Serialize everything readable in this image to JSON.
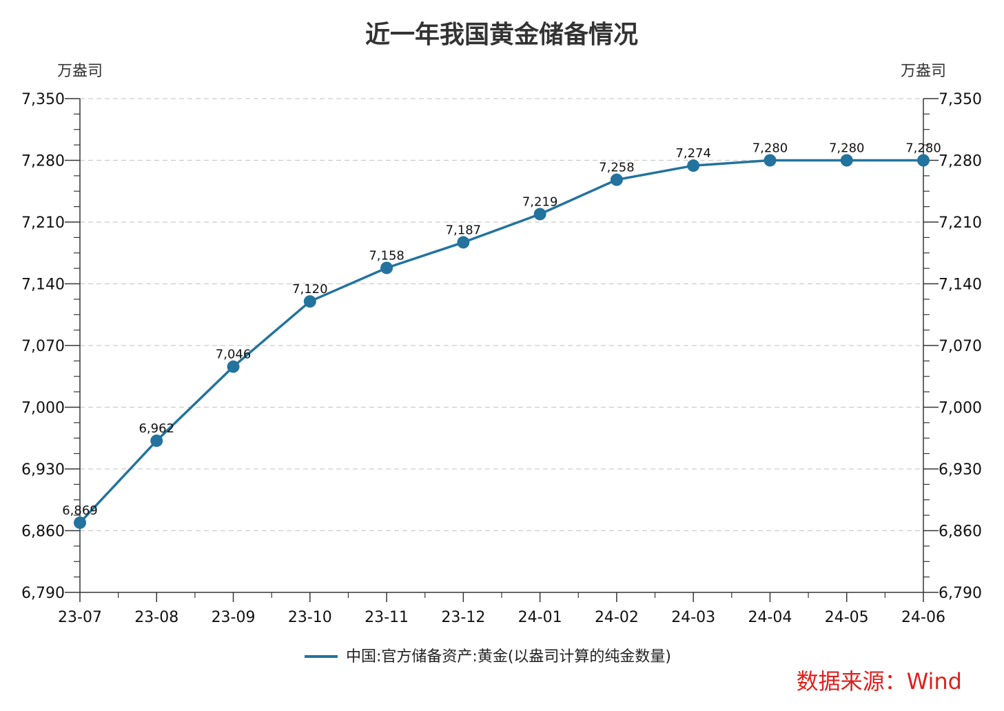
{
  "chart_data": {
    "type": "line",
    "title": "近一年我国黄金储备情况",
    "ylabel_left": "万盎司",
    "ylabel_right": "万盎司",
    "categories": [
      "23-07",
      "23-08",
      "23-09",
      "23-10",
      "23-11",
      "23-12",
      "24-01",
      "24-02",
      "24-03",
      "24-04",
      "24-05",
      "24-06"
    ],
    "series": [
      {
        "name": "中国:官方储备资产:黄金(以盎司计算的纯金数量)",
        "values": [
          6869,
          6962,
          7046,
          7120,
          7158,
          7187,
          7219,
          7258,
          7274,
          7280,
          7280,
          7280
        ],
        "value_labels": [
          "6,869",
          "6,962",
          "7,046",
          "7,120",
          "7,158",
          "7,187",
          "7,219",
          "7,258",
          "7,274",
          "7,280",
          "7,280",
          "7,280"
        ],
        "color": "#23739e"
      }
    ],
    "ylim": [
      6790,
      7350
    ],
    "yticks": [
      6790,
      6860,
      6930,
      7000,
      7070,
      7140,
      7210,
      7280,
      7350
    ],
    "ytick_labels": [
      "6,790",
      "6,860",
      "6,930",
      "7,000",
      "7,070",
      "7,140",
      "7,210",
      "7,280",
      "7,350"
    ],
    "grid": true,
    "legend": "bottom-center"
  },
  "source": "数据来源：Wind",
  "colors": {
    "line": "#23739e",
    "grid": "#cccccc",
    "axis": "#333333",
    "source": "#e0201b"
  }
}
